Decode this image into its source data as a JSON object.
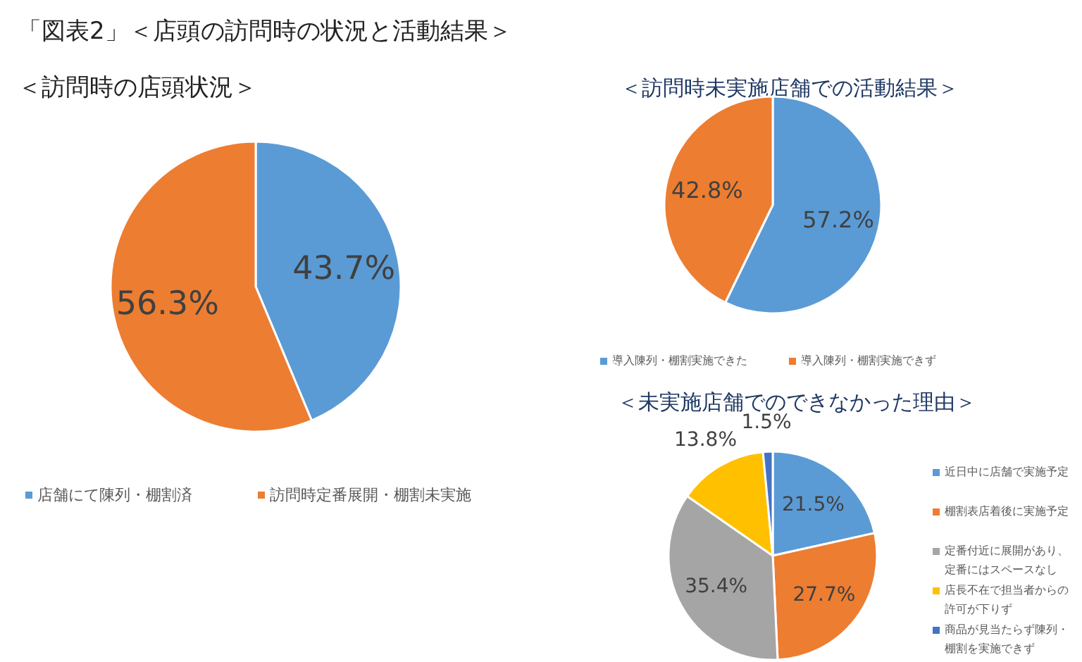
{
  "chart_data": [
    {
      "type": "pie",
      "title": "「図表2」＜店頭の訪問時の状況と活動結果＞",
      "subtitle": "＜訪問時の店頭状況＞",
      "categories": [
        "店舗にて陳列・棚割済",
        "訪問時定番展開・棚割未実施"
      ],
      "values": [
        43.7,
        56.3
      ],
      "value_labels": [
        "43.7%",
        "56.3%"
      ],
      "colors": [
        "#5b9bd5",
        "#ed7d31"
      ],
      "legend": "bottom"
    },
    {
      "type": "pie",
      "title": "＜訪問時未実施店舗での活動結果＞",
      "categories": [
        "導入陳列・棚割実施できた",
        "導入陳列・棚割実施できず"
      ],
      "values": [
        57.2,
        42.8
      ],
      "value_labels": [
        "57.2%",
        "42.8%"
      ],
      "colors": [
        "#5b9bd5",
        "#ed7d31"
      ],
      "legend": "bottom"
    },
    {
      "type": "pie",
      "title": "＜未実施店舗でのできなかった理由＞",
      "categories": [
        "近日中に店舗で実施予定",
        "棚割表店着後に実施予定",
        "定番付近に展開があり、定番にはスペースなし",
        "店長不在で担当者からの許可が下りず",
        "商品が見当たらず陳列・棚割を実施できず"
      ],
      "values": [
        21.5,
        27.7,
        35.4,
        13.8,
        1.5
      ],
      "value_labels": [
        "21.5%",
        "27.7%",
        "35.4%",
        "13.8%",
        "1.5%"
      ],
      "colors": [
        "#5b9bd5",
        "#ed7d31",
        "#a5a5a5",
        "#ffc000",
        "#4472c4"
      ],
      "legend": "right"
    }
  ]
}
